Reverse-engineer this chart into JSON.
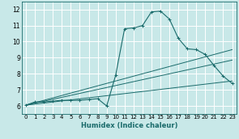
{
  "title": "",
  "xlabel": "Humidex (Indice chaleur)",
  "xlim": [
    -0.5,
    23.5
  ],
  "ylim": [
    5.5,
    12.5
  ],
  "yticks": [
    6,
    7,
    8,
    9,
    10,
    11,
    12
  ],
  "xticks": [
    0,
    1,
    2,
    3,
    4,
    5,
    6,
    7,
    8,
    9,
    10,
    11,
    12,
    13,
    14,
    15,
    16,
    17,
    18,
    19,
    20,
    21,
    22,
    23
  ],
  "background_color": "#c8e8e8",
  "grid_color": "#ffffff",
  "line_color": "#1a6b6b",
  "series_main": {
    "x": [
      0,
      1,
      2,
      3,
      4,
      5,
      6,
      7,
      8,
      9,
      10,
      11,
      12,
      13,
      14,
      15,
      16,
      17,
      18,
      19,
      20,
      21,
      22,
      23
    ],
    "y": [
      6.05,
      6.25,
      6.25,
      6.3,
      6.35,
      6.35,
      6.35,
      6.4,
      6.45,
      6.0,
      7.9,
      10.8,
      10.85,
      11.0,
      11.85,
      11.9,
      11.4,
      10.2,
      9.55,
      9.5,
      9.2,
      8.5,
      7.85,
      7.4
    ]
  },
  "series_lines": [
    {
      "x": [
        0,
        23
      ],
      "y": [
        6.05,
        9.5
      ]
    },
    {
      "x": [
        0,
        23
      ],
      "y": [
        6.05,
        8.85
      ]
    },
    {
      "x": [
        0,
        23
      ],
      "y": [
        6.05,
        7.55
      ]
    }
  ]
}
